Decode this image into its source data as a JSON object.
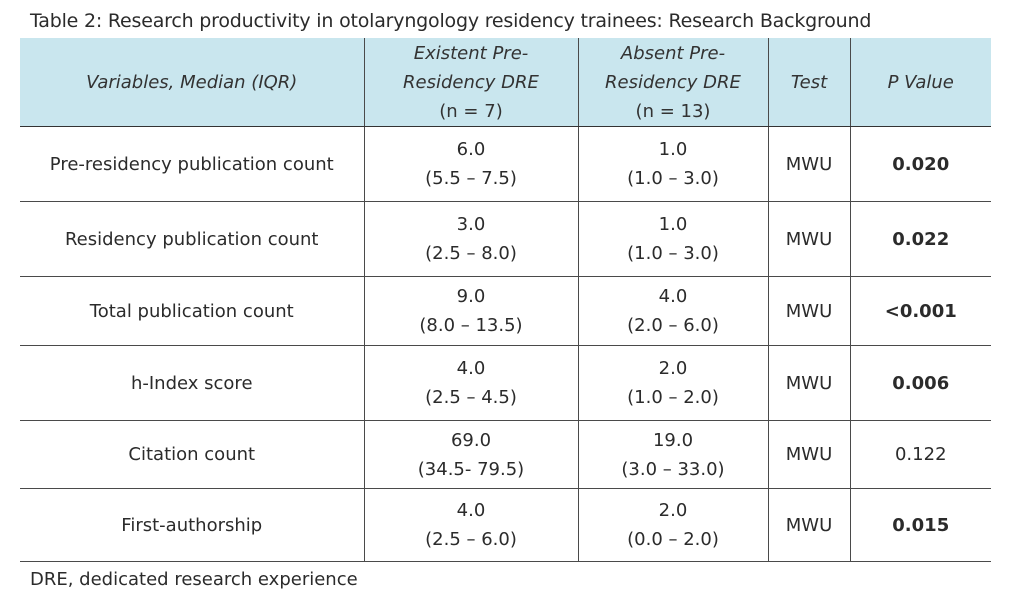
{
  "caption": "Table 2: Research productivity in otolaryngology residency trainees: Research Background",
  "headers": {
    "variables": "Variables, Median (IQR)",
    "existent_line1": "Existent Pre-",
    "existent_line2": "Residency DRE",
    "existent_n": "(n = 7)",
    "absent_line1": "Absent Pre-",
    "absent_line2": "Residency DRE",
    "absent_n": "(n = 13)",
    "test": "Test",
    "p_value": "P Value"
  },
  "rows": [
    {
      "variable": "Pre-residency publication count",
      "existent_median": "6.0",
      "existent_iqr": "(5.5 – 7.5)",
      "absent_median": "1.0",
      "absent_iqr": "(1.0 – 3.0)",
      "test": "MWU",
      "p": "0.020",
      "significant": true
    },
    {
      "variable": "Residency publication count",
      "existent_median": "3.0",
      "existent_iqr": "(2.5 – 8.0)",
      "absent_median": "1.0",
      "absent_iqr": "(1.0 – 3.0)",
      "test": "MWU",
      "p": "0.022",
      "significant": true
    },
    {
      "variable": "Total publication count",
      "existent_median": "9.0",
      "existent_iqr": "(8.0 – 13.5)",
      "absent_median": "4.0",
      "absent_iqr": "(2.0 – 6.0)",
      "test": "MWU",
      "p": "<0.001",
      "significant": true
    },
    {
      "variable": "h-Index score",
      "existent_median": "4.0",
      "existent_iqr": "(2.5 – 4.5)",
      "absent_median": "2.0",
      "absent_iqr": "(1.0 – 2.0)",
      "test": "MWU",
      "p": "0.006",
      "significant": true
    },
    {
      "variable": "Citation count",
      "existent_median": "69.0",
      "existent_iqr": "(34.5- 79.5)",
      "absent_median": "19.0",
      "absent_iqr": "(3.0 – 33.0)",
      "test": "MWU",
      "p": "0.122",
      "significant": false
    },
    {
      "variable": "First-authorship",
      "existent_median": "4.0",
      "existent_iqr": "(2.5 – 6.0)",
      "absent_median": "2.0",
      "absent_iqr": "(0.0 – 2.0)",
      "test": "MWU",
      "p": "0.015",
      "significant": true
    }
  ],
  "footnote": "DRE, dedicated research experience"
}
